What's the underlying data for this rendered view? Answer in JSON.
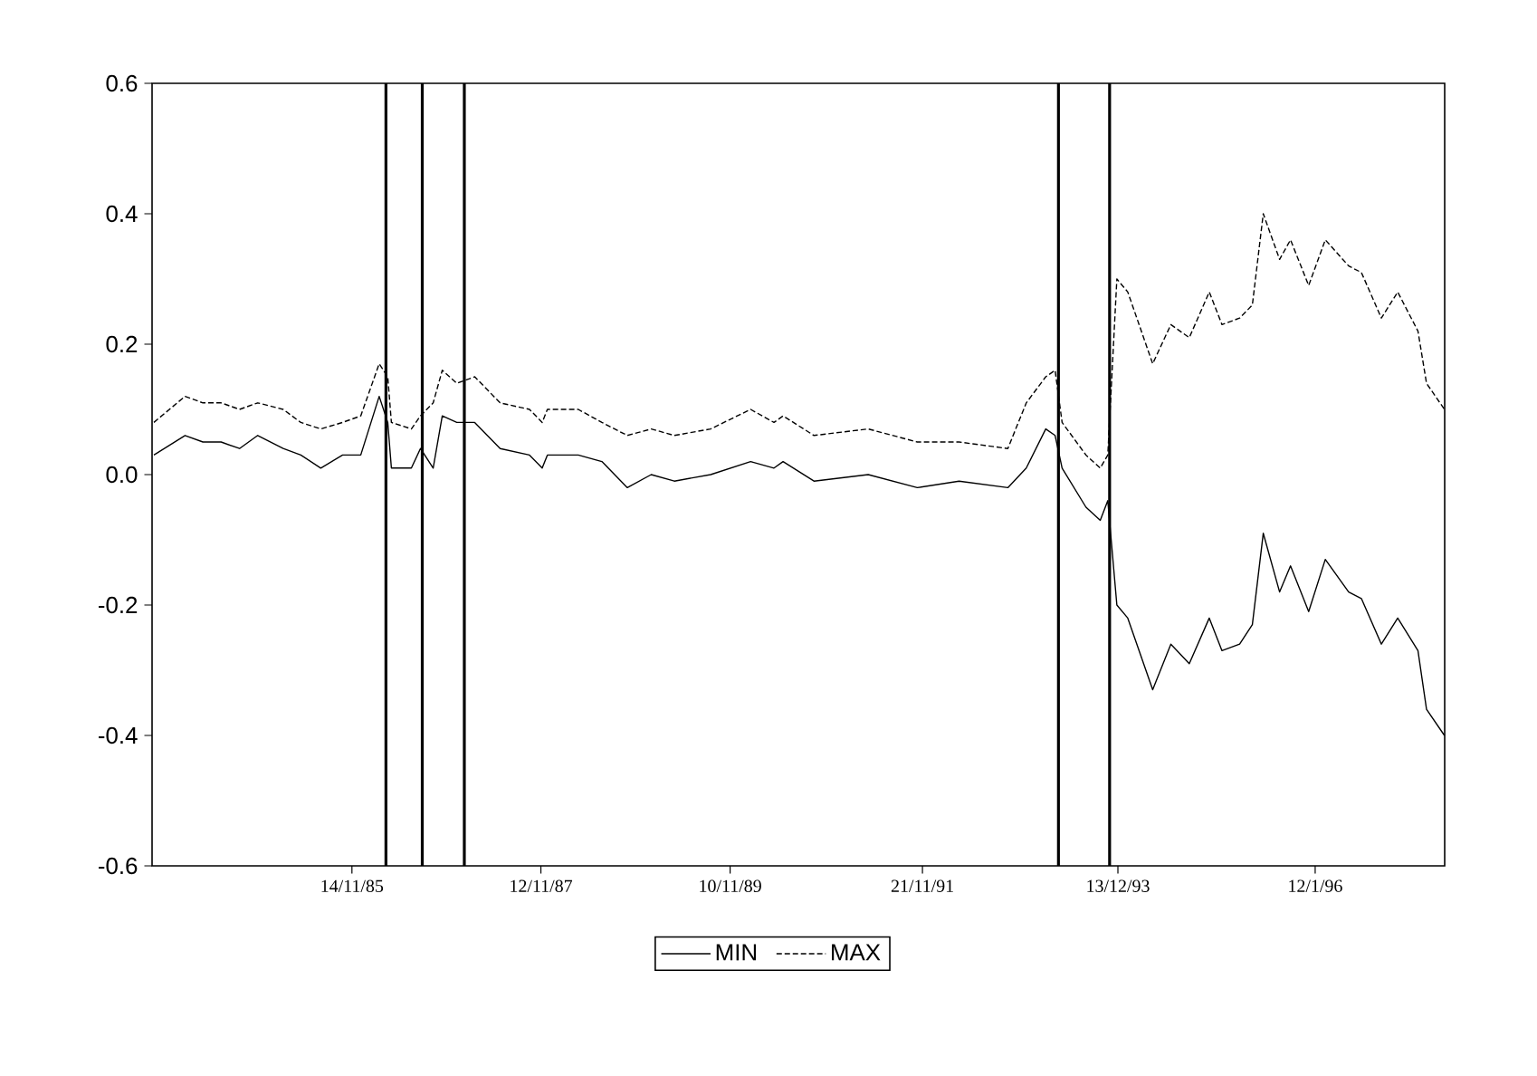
{
  "chart_data": {
    "type": "line",
    "x": [
      "1983-10-13",
      "1984-02-10",
      "1984-04-19",
      "1984-06-28",
      "1984-09-07",
      "1984-11-16",
      "1985-02-22",
      "1985-05-01",
      "1985-07-17",
      "1985-10-09",
      "1985-12-18",
      "1986-02-27",
      "1986-04-01",
      "1986-04-15",
      "1986-07-01",
      "1986-08-05",
      "1986-09-23",
      "1986-10-28",
      "1986-12-23",
      "1987-03-02",
      "1987-06-08",
      "1987-09-29",
      "1987-11-17",
      "1987-12-07",
      "1988-04-04",
      "1988-07-04",
      "1988-10-10",
      "1989-01-10",
      "1989-04-09",
      "1989-08-27",
      "1990-01-28",
      "1990-04-28",
      "1990-06-02",
      "1990-09-29",
      "1991-04-26",
      "1991-11-01",
      "1992-04-10",
      "1992-10-15",
      "1992-12-25",
      "1993-03-10",
      "1993-04-15",
      "1993-05-12",
      "1993-08-12",
      "1993-10-06",
      "1993-11-04",
      "1993-12-09",
      "1994-01-20",
      "1994-04-26",
      "1994-07-05",
      "1994-09-14",
      "1994-11-30",
      "1995-01-18",
      "1995-03-27",
      "1995-05-15",
      "1995-06-26",
      "1995-08-28",
      "1995-10-09",
      "1995-12-18",
      "1996-02-20",
      "1996-05-20",
      "1996-07-08",
      "1996-09-23",
      "1996-11-25",
      "1997-02-11",
      "1997-03-16",
      "1997-05-24"
    ],
    "series": [
      {
        "name": "MIN",
        "color": "#000000",
        "line_style": "solid",
        "values": [
          0.03,
          0.06,
          0.05,
          0.05,
          0.04,
          0.06,
          0.04,
          0.03,
          0.01,
          0.03,
          0.03,
          0.12,
          0.08,
          0.01,
          0.01,
          0.04,
          0.01,
          0.09,
          0.08,
          0.08,
          0.04,
          0.03,
          0.01,
          0.03,
          0.03,
          0.02,
          -0.02,
          0.0,
          -0.01,
          0.0,
          0.02,
          0.01,
          0.02,
          -0.01,
          0.0,
          -0.02,
          -0.01,
          -0.02,
          0.01,
          0.07,
          0.06,
          0.01,
          -0.05,
          -0.07,
          -0.04,
          -0.2,
          -0.22,
          -0.33,
          -0.26,
          -0.29,
          -0.22,
          -0.27,
          -0.26,
          -0.23,
          -0.09,
          -0.18,
          -0.14,
          -0.21,
          -0.13,
          -0.18,
          -0.19,
          -0.26,
          -0.22,
          -0.27,
          -0.36,
          -0.4
        ]
      },
      {
        "name": "MAX",
        "color": "#000000",
        "line_style": "dashed",
        "values": [
          0.08,
          0.12,
          0.11,
          0.11,
          0.1,
          0.11,
          0.1,
          0.08,
          0.07,
          0.08,
          0.09,
          0.17,
          0.15,
          0.08,
          0.07,
          0.09,
          0.11,
          0.16,
          0.14,
          0.15,
          0.11,
          0.1,
          0.08,
          0.1,
          0.1,
          0.08,
          0.06,
          0.07,
          0.06,
          0.07,
          0.1,
          0.08,
          0.09,
          0.06,
          0.07,
          0.05,
          0.05,
          0.04,
          0.11,
          0.15,
          0.16,
          0.08,
          0.03,
          0.01,
          0.03,
          0.3,
          0.28,
          0.17,
          0.23,
          0.21,
          0.28,
          0.23,
          0.24,
          0.26,
          0.4,
          0.33,
          0.36,
          0.29,
          0.36,
          0.32,
          0.31,
          0.24,
          0.28,
          0.22,
          0.14,
          0.1
        ]
      }
    ],
    "xlim": [
      "1983-10-06",
      "1997-05-25"
    ],
    "xticks": [
      {
        "value": "1985-11-14",
        "label": "14/11/85"
      },
      {
        "value": "1987-11-12",
        "label": "12/11/87"
      },
      {
        "value": "1989-11-10",
        "label": "10/11/89"
      },
      {
        "value": "1991-11-21",
        "label": "21/11/91"
      },
      {
        "value": "1993-12-13",
        "label": "13/12/93"
      },
      {
        "value": "1996-01-12",
        "label": "12/1/96"
      }
    ],
    "ylim": [
      -0.6,
      0.6
    ],
    "yticks": [
      {
        "value": -0.6,
        "label": "-0.6"
      },
      {
        "value": -0.4,
        "label": "-0.4"
      },
      {
        "value": -0.2,
        "label": "-0.2"
      },
      {
        "value": 0,
        "label": "0.0"
      },
      {
        "value": 0.2,
        "label": "0.2"
      },
      {
        "value": 0.4,
        "label": "0.4"
      },
      {
        "value": 0.6,
        "label": "0.6"
      }
    ],
    "ref_lines": [
      {
        "axis": "x",
        "value": "1986-03-25",
        "color": "#000000"
      },
      {
        "axis": "x",
        "value": "1986-08-12",
        "color": "#000000"
      },
      {
        "axis": "x",
        "value": "1987-01-21",
        "color": "#000000"
      },
      {
        "axis": "x",
        "value": "1993-04-28",
        "color": "#000000"
      },
      {
        "axis": "x",
        "value": "1993-11-11",
        "color": "#000000"
      }
    ],
    "grid": false,
    "legend": "bottom"
  }
}
